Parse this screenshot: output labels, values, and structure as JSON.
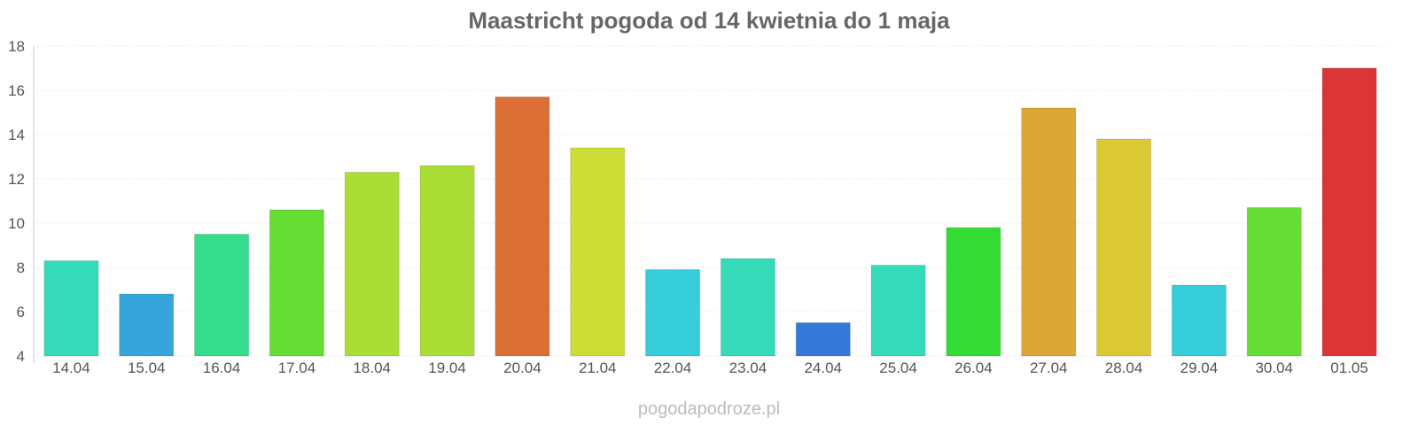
{
  "chart_data": {
    "type": "bar",
    "title": "Maastricht pogoda od 14 kwietnia do 1 maja",
    "xlabel": "",
    "ylabel": "",
    "ylim": [
      4,
      18
    ],
    "yticks": [
      4,
      6,
      8,
      10,
      12,
      14,
      16,
      18
    ],
    "grid": true,
    "categories": [
      "14.04",
      "15.04",
      "16.04",
      "17.04",
      "18.04",
      "19.04",
      "20.04",
      "21.04",
      "22.04",
      "23.04",
      "24.04",
      "25.04",
      "26.04",
      "27.04",
      "28.04",
      "29.04",
      "30.04",
      "01.05"
    ],
    "values": [
      8.3,
      6.8,
      9.5,
      10.6,
      12.3,
      12.6,
      15.7,
      13.4,
      7.9,
      8.4,
      5.5,
      8.1,
      9.8,
      15.2,
      13.8,
      7.2,
      10.7,
      17.0
    ],
    "colors": [
      "#35dab9",
      "#35a5da",
      "#35dc8c",
      "#67dc35",
      "#aadd35",
      "#aadd35",
      "#dc6f35",
      "#ccdd35",
      "#35cdda",
      "#35dab9",
      "#3579da",
      "#35dab9",
      "#35dc35",
      "#dca735",
      "#dac935",
      "#35cdda",
      "#67dc35",
      "#dc3535"
    ]
  },
  "footer": {
    "source": "pogodapodroze.pl"
  }
}
